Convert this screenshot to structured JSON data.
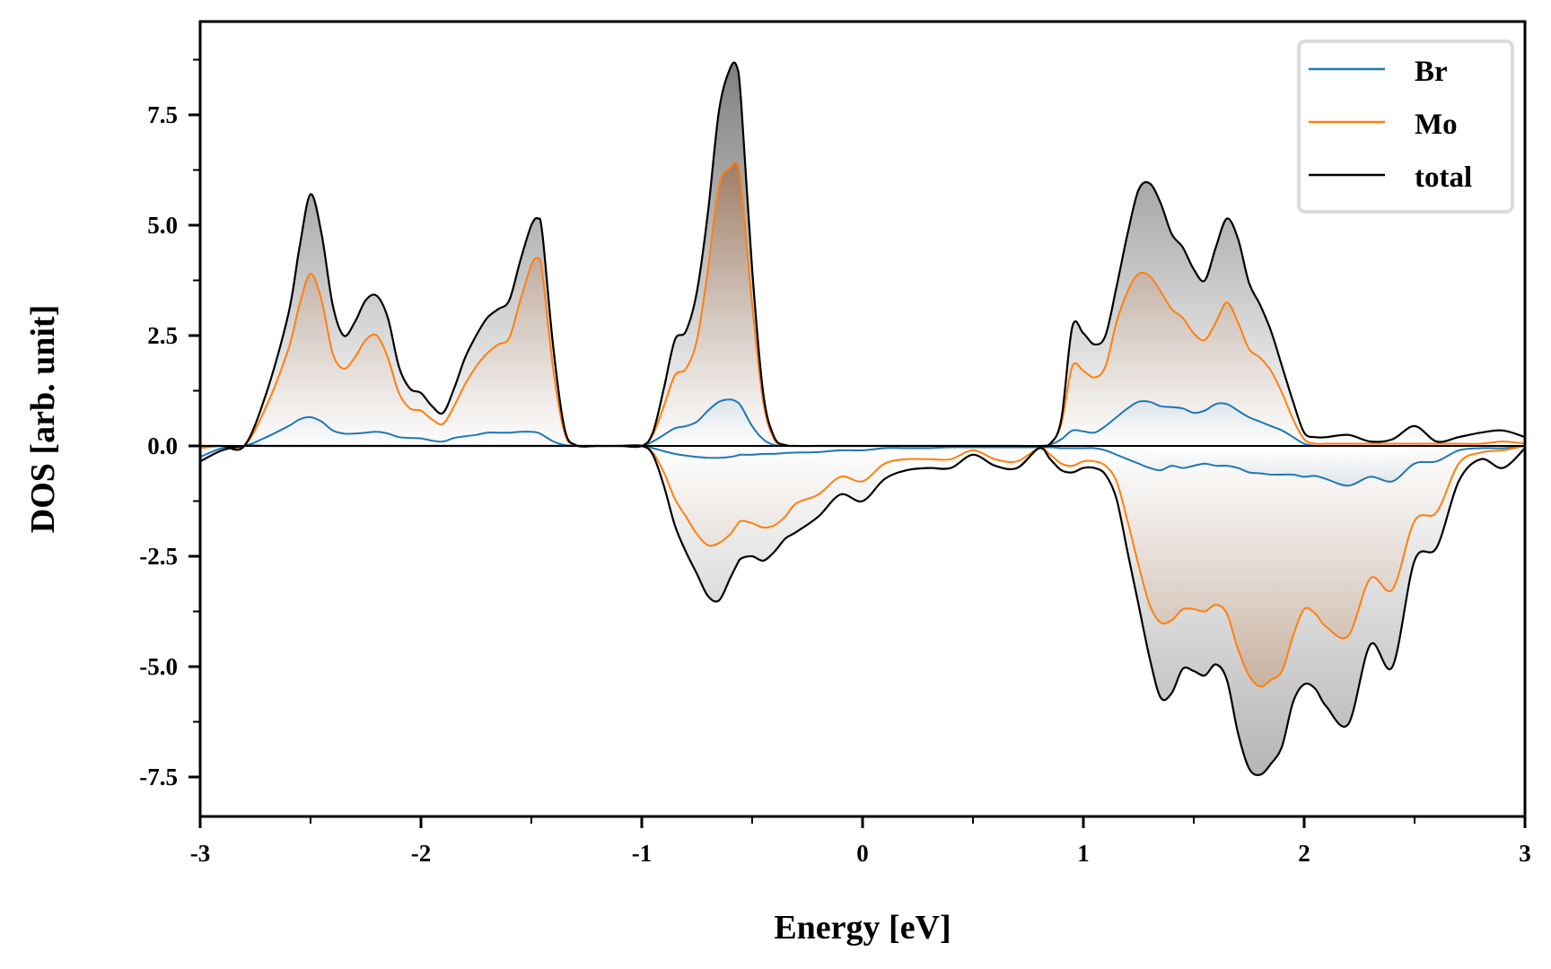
{
  "chart_data": {
    "type": "area",
    "title": "",
    "xlabel": "Energy [eV]",
    "ylabel": "DOS [arb. unit]",
    "xlim": [
      -3,
      3
    ],
    "ylim": [
      -8.45,
      9.6
    ],
    "xticks": [
      -3,
      -2,
      -1,
      0,
      1,
      2,
      3
    ],
    "xtick_labels": [
      "-3",
      "-2",
      "-1",
      "0",
      "1",
      "2",
      "3"
    ],
    "xminor": [
      -2.5,
      -1.5,
      -0.5,
      0.5,
      1.5,
      2.5
    ],
    "yticks": [
      -7.5,
      -5.0,
      -2.5,
      0.0,
      2.5,
      5.0,
      7.5
    ],
    "ytick_labels": [
      "-7.5",
      "-5.0",
      "-2.5",
      "0.0",
      "2.5",
      "5.0",
      "7.5"
    ],
    "yminor": [
      -6.25,
      -3.75,
      -1.25,
      1.25,
      3.75,
      6.25,
      8.75
    ],
    "grid": false,
    "legend": {
      "position": "top-right",
      "entries": [
        "Br",
        "Mo",
        "total"
      ]
    },
    "colors": {
      "Br": "#1f77b4",
      "Mo": "#ff7f0e",
      "total": "#000000"
    },
    "x": [
      -3.0,
      -2.9,
      -2.8,
      -2.7,
      -2.6,
      -2.55,
      -2.5,
      -2.45,
      -2.4,
      -2.35,
      -2.3,
      -2.25,
      -2.2,
      -2.15,
      -2.1,
      -2.05,
      -2.0,
      -1.95,
      -1.9,
      -1.85,
      -1.8,
      -1.75,
      -1.7,
      -1.65,
      -1.6,
      -1.55,
      -1.5,
      -1.47,
      -1.45,
      -1.4,
      -1.35,
      -1.3,
      -1.2,
      -1.1,
      -1.0,
      -0.95,
      -0.9,
      -0.85,
      -0.8,
      -0.75,
      -0.7,
      -0.65,
      -0.6,
      -0.57,
      -0.55,
      -0.5,
      -0.45,
      -0.4,
      -0.35,
      -0.3,
      -0.2,
      -0.1,
      0.0,
      0.1,
      0.2,
      0.3,
      0.4,
      0.5,
      0.6,
      0.7,
      0.8,
      0.85,
      0.9,
      0.95,
      1.0,
      1.05,
      1.1,
      1.15,
      1.2,
      1.25,
      1.3,
      1.35,
      1.4,
      1.45,
      1.5,
      1.55,
      1.6,
      1.65,
      1.7,
      1.75,
      1.8,
      1.85,
      1.9,
      1.95,
      2.0,
      2.05,
      2.1,
      2.2,
      2.3,
      2.4,
      2.5,
      2.6,
      2.7,
      2.8,
      2.9,
      3.0
    ],
    "series": [
      {
        "name": "total",
        "spin": "up",
        "values": [
          0.0,
          0.0,
          0.0,
          1.2,
          3.0,
          4.5,
          5.7,
          4.8,
          3.2,
          2.5,
          2.8,
          3.3,
          3.4,
          2.9,
          1.8,
          1.3,
          1.2,
          0.9,
          0.75,
          1.3,
          2.0,
          2.5,
          2.9,
          3.1,
          3.3,
          4.2,
          5.0,
          5.15,
          4.8,
          2.2,
          0.4,
          0.02,
          0.0,
          0.0,
          0.0,
          0.3,
          1.3,
          2.4,
          2.6,
          3.5,
          5.3,
          7.6,
          8.55,
          8.6,
          7.8,
          4.0,
          1.2,
          0.2,
          0.02,
          0.0,
          0.0,
          0.0,
          0.0,
          0.0,
          0.0,
          0.0,
          0.0,
          0.0,
          0.0,
          0.0,
          0.0,
          0.05,
          0.6,
          2.7,
          2.55,
          2.3,
          2.5,
          3.6,
          4.8,
          5.8,
          5.95,
          5.5,
          4.8,
          4.5,
          4.0,
          3.75,
          4.5,
          5.15,
          4.7,
          3.7,
          3.2,
          2.6,
          1.8,
          1.0,
          0.3,
          0.2,
          0.2,
          0.25,
          0.1,
          0.15,
          0.45,
          0.1,
          0.2,
          0.3,
          0.35,
          0.2
        ]
      },
      {
        "name": "Mo",
        "spin": "up",
        "values": [
          0.0,
          0.0,
          0.0,
          0.9,
          2.2,
          3.2,
          3.9,
          3.3,
          2.1,
          1.75,
          2.0,
          2.4,
          2.5,
          2.0,
          1.2,
          0.85,
          0.8,
          0.6,
          0.5,
          0.9,
          1.4,
          1.8,
          2.1,
          2.3,
          2.45,
          3.3,
          4.1,
          4.25,
          3.9,
          1.7,
          0.3,
          0.02,
          0.0,
          0.0,
          0.0,
          0.25,
          0.9,
          1.6,
          1.75,
          2.4,
          4.0,
          5.9,
          6.3,
          6.4,
          5.9,
          3.2,
          1.0,
          0.15,
          0.02,
          0.0,
          0.0,
          0.0,
          0.0,
          0.0,
          0.0,
          0.0,
          0.0,
          0.0,
          0.0,
          0.0,
          0.0,
          0.05,
          0.5,
          1.8,
          1.7,
          1.55,
          1.8,
          2.8,
          3.5,
          3.9,
          3.85,
          3.5,
          3.1,
          2.9,
          2.55,
          2.4,
          2.8,
          3.25,
          2.8,
          2.2,
          2.0,
          1.7,
          1.2,
          0.6,
          0.15,
          0.05,
          0.05,
          0.05,
          0.05,
          0.05,
          0.05,
          0.05,
          0.05,
          0.05,
          0.1,
          0.05
        ]
      },
      {
        "name": "Br",
        "spin": "up",
        "values": [
          0.0,
          0.0,
          0.0,
          0.2,
          0.45,
          0.6,
          0.65,
          0.55,
          0.35,
          0.28,
          0.28,
          0.3,
          0.32,
          0.28,
          0.2,
          0.18,
          0.17,
          0.12,
          0.1,
          0.18,
          0.22,
          0.25,
          0.3,
          0.3,
          0.3,
          0.32,
          0.32,
          0.3,
          0.25,
          0.1,
          0.02,
          0.0,
          0.0,
          0.0,
          0.0,
          0.1,
          0.25,
          0.4,
          0.45,
          0.55,
          0.8,
          1.0,
          1.05,
          1.0,
          0.9,
          0.45,
          0.15,
          0.02,
          0.0,
          0.0,
          0.0,
          0.0,
          0.0,
          0.0,
          0.0,
          0.0,
          0.0,
          0.0,
          0.0,
          0.0,
          0.0,
          0.03,
          0.15,
          0.35,
          0.33,
          0.3,
          0.45,
          0.65,
          0.85,
          1.0,
          1.0,
          0.9,
          0.88,
          0.85,
          0.75,
          0.8,
          0.95,
          0.95,
          0.8,
          0.65,
          0.55,
          0.45,
          0.35,
          0.2,
          0.05,
          0.0,
          0.0,
          0.0,
          0.0,
          0.0,
          0.0,
          0.0,
          0.0,
          0.0,
          0.0,
          0.0
        ]
      },
      {
        "name": "total",
        "spin": "down",
        "values": [
          -0.35,
          -0.1,
          0.0,
          0.0,
          0.0,
          0.0,
          0.0,
          0.0,
          0.0,
          0.0,
          0.0,
          0.0,
          0.0,
          0.0,
          0.0,
          0.0,
          0.0,
          0.0,
          0.0,
          0.0,
          0.0,
          0.0,
          0.0,
          0.0,
          0.0,
          0.0,
          0.0,
          0.0,
          0.0,
          0.0,
          0.0,
          0.0,
          0.0,
          0.0,
          0.0,
          -0.2,
          -0.9,
          -1.8,
          -2.4,
          -2.9,
          -3.4,
          -3.5,
          -3.0,
          -2.7,
          -2.55,
          -2.5,
          -2.6,
          -2.4,
          -2.1,
          -1.95,
          -1.6,
          -1.1,
          -1.25,
          -0.75,
          -0.55,
          -0.5,
          -0.5,
          -0.2,
          -0.45,
          -0.5,
          -0.05,
          -0.3,
          -0.55,
          -0.6,
          -0.5,
          -0.5,
          -0.65,
          -1.2,
          -2.4,
          -3.6,
          -4.8,
          -5.7,
          -5.6,
          -5.05,
          -5.1,
          -5.2,
          -4.95,
          -5.3,
          -6.5,
          -7.3,
          -7.45,
          -7.2,
          -6.8,
          -5.8,
          -5.4,
          -5.5,
          -5.9,
          -6.3,
          -4.5,
          -5.0,
          -2.6,
          -2.3,
          -0.8,
          -0.3,
          -0.5,
          -0.05
        ]
      },
      {
        "name": "Mo",
        "spin": "down",
        "values": [
          -0.05,
          0.0,
          0.0,
          0.0,
          0.0,
          0.0,
          0.0,
          0.0,
          0.0,
          0.0,
          0.0,
          0.0,
          0.0,
          0.0,
          0.0,
          0.0,
          0.0,
          0.0,
          0.0,
          0.0,
          0.0,
          0.0,
          0.0,
          0.0,
          0.0,
          0.0,
          0.0,
          0.0,
          0.0,
          0.0,
          0.0,
          0.0,
          0.0,
          0.0,
          0.0,
          -0.15,
          -0.6,
          -1.2,
          -1.6,
          -2.0,
          -2.25,
          -2.2,
          -2.0,
          -1.8,
          -1.7,
          -1.75,
          -1.85,
          -1.8,
          -1.6,
          -1.3,
          -1.1,
          -0.7,
          -0.8,
          -0.4,
          -0.3,
          -0.3,
          -0.3,
          -0.1,
          -0.3,
          -0.35,
          -0.05,
          -0.2,
          -0.4,
          -0.45,
          -0.35,
          -0.35,
          -0.45,
          -0.8,
          -1.7,
          -2.7,
          -3.6,
          -4.0,
          -3.95,
          -3.7,
          -3.7,
          -3.75,
          -3.6,
          -3.8,
          -4.6,
          -5.2,
          -5.45,
          -5.3,
          -5.1,
          -4.3,
          -3.7,
          -3.8,
          -4.1,
          -4.3,
          -3.0,
          -3.25,
          -1.7,
          -1.5,
          -0.4,
          -0.15,
          -0.1,
          0.0
        ]
      },
      {
        "name": "Br",
        "spin": "down",
        "values": [
          -0.25,
          -0.05,
          0.0,
          0.0,
          0.0,
          0.0,
          0.0,
          0.0,
          0.0,
          0.0,
          0.0,
          0.0,
          0.0,
          0.0,
          0.0,
          0.0,
          0.0,
          0.0,
          0.0,
          0.0,
          0.0,
          0.0,
          0.0,
          0.0,
          0.0,
          0.0,
          0.0,
          0.0,
          0.0,
          0.0,
          0.0,
          0.0,
          0.0,
          0.0,
          0.0,
          -0.05,
          -0.12,
          -0.18,
          -0.22,
          -0.25,
          -0.27,
          -0.27,
          -0.25,
          -0.22,
          -0.2,
          -0.2,
          -0.18,
          -0.18,
          -0.16,
          -0.15,
          -0.14,
          -0.1,
          -0.1,
          -0.05,
          -0.05,
          -0.05,
          -0.03,
          -0.03,
          -0.03,
          -0.03,
          -0.03,
          -0.03,
          -0.05,
          -0.05,
          -0.05,
          -0.05,
          -0.1,
          -0.2,
          -0.3,
          -0.4,
          -0.5,
          -0.55,
          -0.45,
          -0.5,
          -0.45,
          -0.4,
          -0.45,
          -0.45,
          -0.5,
          -0.6,
          -0.62,
          -0.65,
          -0.65,
          -0.65,
          -0.7,
          -0.68,
          -0.75,
          -0.9,
          -0.7,
          -0.8,
          -0.4,
          -0.35,
          -0.1,
          -0.05,
          -0.05,
          0.0
        ]
      }
    ]
  }
}
